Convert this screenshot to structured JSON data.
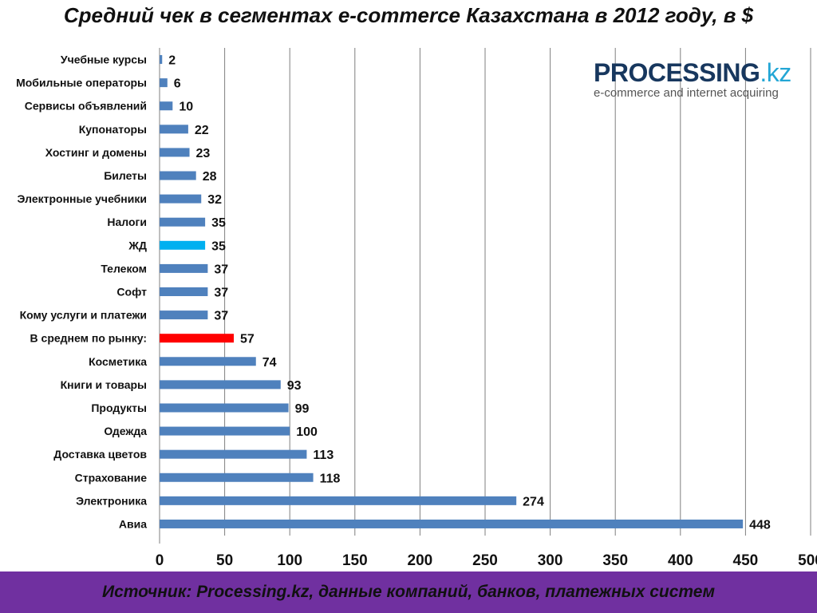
{
  "title": "Средний чек в сегментах e-commerce Казахстана в 2012 году, в $",
  "logo": {
    "name": "PROCESSING",
    "suffix": ".kz",
    "tagline": "e-commerce and internet acquiring"
  },
  "footer": "Источник: Processing.kz, данные компаний, банков, платежных систем",
  "colors": {
    "default": "#4f81bd",
    "average": "#ff0000",
    "railway": "#00b0f0",
    "footer_bg": "#7030a0"
  },
  "chart_data": {
    "type": "bar",
    "orientation": "horizontal",
    "title": "Средний чек в сегментах e-commerce Казахстана в 2012 году, в $",
    "categories": [
      "Учебные курсы",
      "Мобильные операторы",
      "Сервисы объявлений",
      "Купонаторы",
      "Хостинг и домены",
      "Билеты",
      "Электронные учебники",
      "Налоги",
      "ЖД",
      "Телеком",
      "Софт",
      "Кому услуги и платежи",
      "В среднем по рынку:",
      "Косметика",
      "Книги и товары",
      "Продукты",
      "Одежда",
      "Доставка цветов",
      "Страхование",
      "Электроника",
      "Авиа"
    ],
    "values": [
      2,
      6,
      10,
      22,
      23,
      28,
      32,
      35,
      35,
      37,
      37,
      37,
      57,
      74,
      93,
      99,
      100,
      113,
      118,
      274,
      448
    ],
    "highlight": {
      "ЖД": "#00b0f0",
      "В среднем по рынку:": "#ff0000"
    },
    "xlim": [
      0,
      500
    ],
    "xticks": [
      0,
      50,
      100,
      150,
      200,
      250,
      300,
      350,
      400,
      450,
      500
    ],
    "grid": true,
    "legend": "none"
  }
}
